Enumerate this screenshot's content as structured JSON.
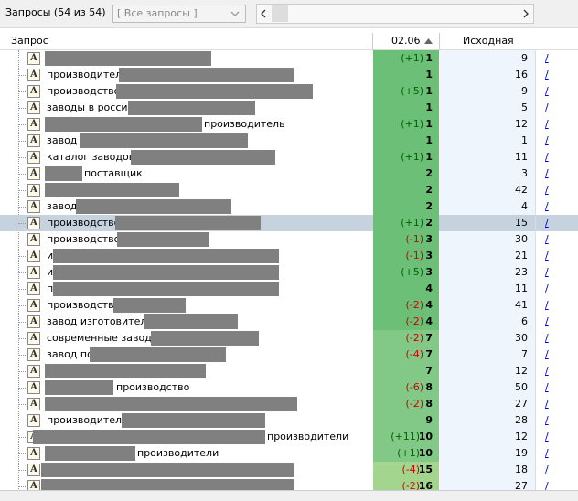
{
  "toolbar": {
    "title": "Запросы (54 из 54)",
    "filter": "[ Все запросы ]"
  },
  "table": {
    "columns": [
      "Запрос",
      "02.06",
      "Исходная"
    ],
    "link": "/",
    "rows": [
      {
        "change": "(+1)",
        "position": 1,
        "original": 9,
        "color": "#6cbf77"
      },
      {
        "query": "производители",
        "position": 1,
        "original": 16,
        "color": "#6cbf77"
      },
      {
        "query": "производство",
        "change": "(+5)",
        "position": 1,
        "original": 9,
        "color": "#6cbf77"
      },
      {
        "query": "заводы в россии",
        "position": 1,
        "original": 5,
        "color": "#6cbf77"
      },
      {
        "query": "производитель",
        "change": "(+1)",
        "position": 1,
        "original": 12,
        "color": "#6cbf77"
      },
      {
        "query": "завод",
        "position": 1,
        "original": 1,
        "color": "#6cbf77"
      },
      {
        "query": "каталог заводов в",
        "change": "(+1)",
        "position": 1,
        "original": 11,
        "color": "#6cbf77"
      },
      {
        "query": "поставщик",
        "position": 2,
        "original": 3,
        "color": "#6cbf77"
      },
      {
        "position": 2,
        "original": 42,
        "color": "#6cbf77"
      },
      {
        "query": "завод",
        "position": 2,
        "original": 4,
        "color": "#6cbf77"
      },
      {
        "query": "производство",
        "change": "(+1)",
        "position": 2,
        "original": 15,
        "color": "#6cbf77"
      },
      {
        "query": "производство",
        "change": "(-1)",
        "position": 3,
        "original": 30,
        "color": "#6cbf77"
      },
      {
        "query": "и",
        "change": "(-1)",
        "position": 3,
        "original": 21,
        "color": "#6cbf77"
      },
      {
        "query": "и",
        "change": "(+5)",
        "position": 3,
        "original": 23,
        "color": "#6cbf77"
      },
      {
        "query": "п",
        "position": 4,
        "original": 11,
        "color": "#6cbf77"
      },
      {
        "query": "производство",
        "change": "(-2)",
        "position": 4,
        "original": 41,
        "color": "#6cbf77"
      },
      {
        "query": "завод изготовитель",
        "change": "(-2)",
        "position": 4,
        "original": 6,
        "color": "#6cbf77"
      },
      {
        "query": "современные заводы",
        "change": "(-2)",
        "position": 7,
        "original": 30,
        "color": "#82c988"
      },
      {
        "query": "завод по",
        "change": "(-4)",
        "position": 7,
        "original": 7,
        "color": "#82c988"
      },
      {
        "position": 7,
        "original": 12,
        "color": "#82c988"
      },
      {
        "query": "производство",
        "change": "(-6)",
        "position": 8,
        "original": 50,
        "color": "#82c988"
      },
      {
        "change": "(-2)",
        "position": 8,
        "original": 27,
        "color": "#82c988"
      },
      {
        "query": "производители",
        "position": 9,
        "original": 28,
        "color": "#82c988"
      },
      {
        "query": "производители",
        "change": "(+11)",
        "position": 10,
        "original": 12,
        "color": "#82c988"
      },
      {
        "query": "производители",
        "change": "(+1)",
        "position": 10,
        "original": 19,
        "color": "#82c988"
      },
      {
        "change": "(-4)",
        "position": 15,
        "original": 18,
        "color": "#a3d58f"
      },
      {
        "change": "(-2)",
        "position": 16,
        "original": 27,
        "color": "#a3d58f"
      }
    ]
  }
}
